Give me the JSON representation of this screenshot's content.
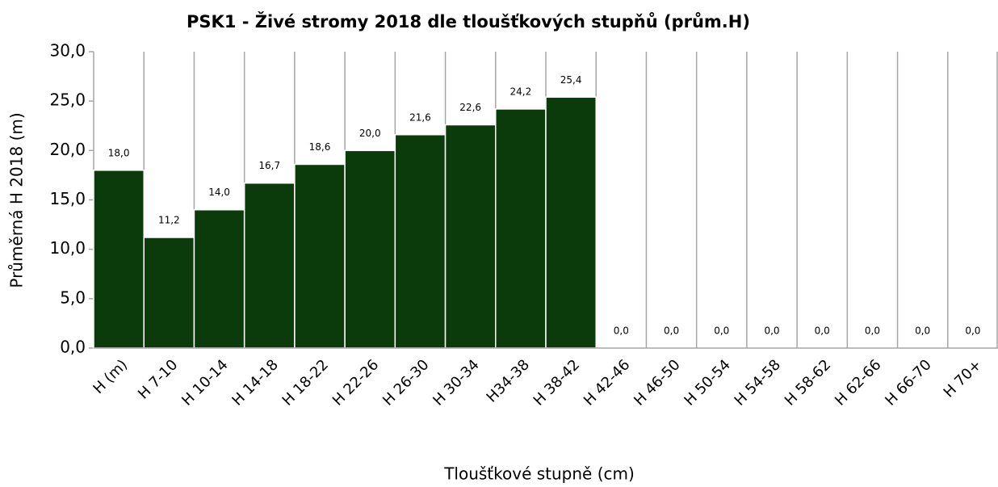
{
  "chart_data": {
    "type": "bar",
    "title": "PSK1 - Živé stromy 2018 dle tloušťkových stupňů  (prům.H)",
    "y_label": "Průměrná H 2018 (m)",
    "x_label": "Tloušťkové stupně (cm)",
    "categories": [
      "H (m)",
      "H 7-10",
      "H 10-14",
      "H 14-18",
      "H 18-22",
      "H 22-26",
      "H 26-30",
      "H 30-34",
      "H34-38",
      "H 38-42",
      "H 42-46",
      "H 46-50",
      "H 50-54",
      "H 54-58",
      "H 58-62",
      "H 62-66",
      "H 66-70",
      "H 70+"
    ],
    "values": [
      18.0,
      11.2,
      14.0,
      16.7,
      18.6,
      20.0,
      21.6,
      22.6,
      24.2,
      25.4,
      0,
      0,
      0,
      0,
      0,
      0,
      0,
      0
    ],
    "value_labels": [
      "18,0",
      "11,2",
      "14,0",
      "16,7",
      "18,6",
      "20,0",
      "21,6",
      "22,6",
      "24,2",
      "25,4",
      "0,0",
      "0,0",
      "0,0",
      "0,0",
      "0,0",
      "0,0",
      "0,0",
      "0,0"
    ],
    "color": "#0b3a0b",
    "ylim": [
      0,
      30
    ],
    "yticks": [
      {
        "value": 0,
        "label": "0,0"
      },
      {
        "value": 5,
        "label": "5,0"
      },
      {
        "value": 10,
        "label": "10,0"
      },
      {
        "value": 15,
        "label": "15,0"
      },
      {
        "value": 20,
        "label": "20,0"
      },
      {
        "value": 25,
        "label": "25,0"
      },
      {
        "value": 30,
        "label": "30,0"
      }
    ]
  }
}
